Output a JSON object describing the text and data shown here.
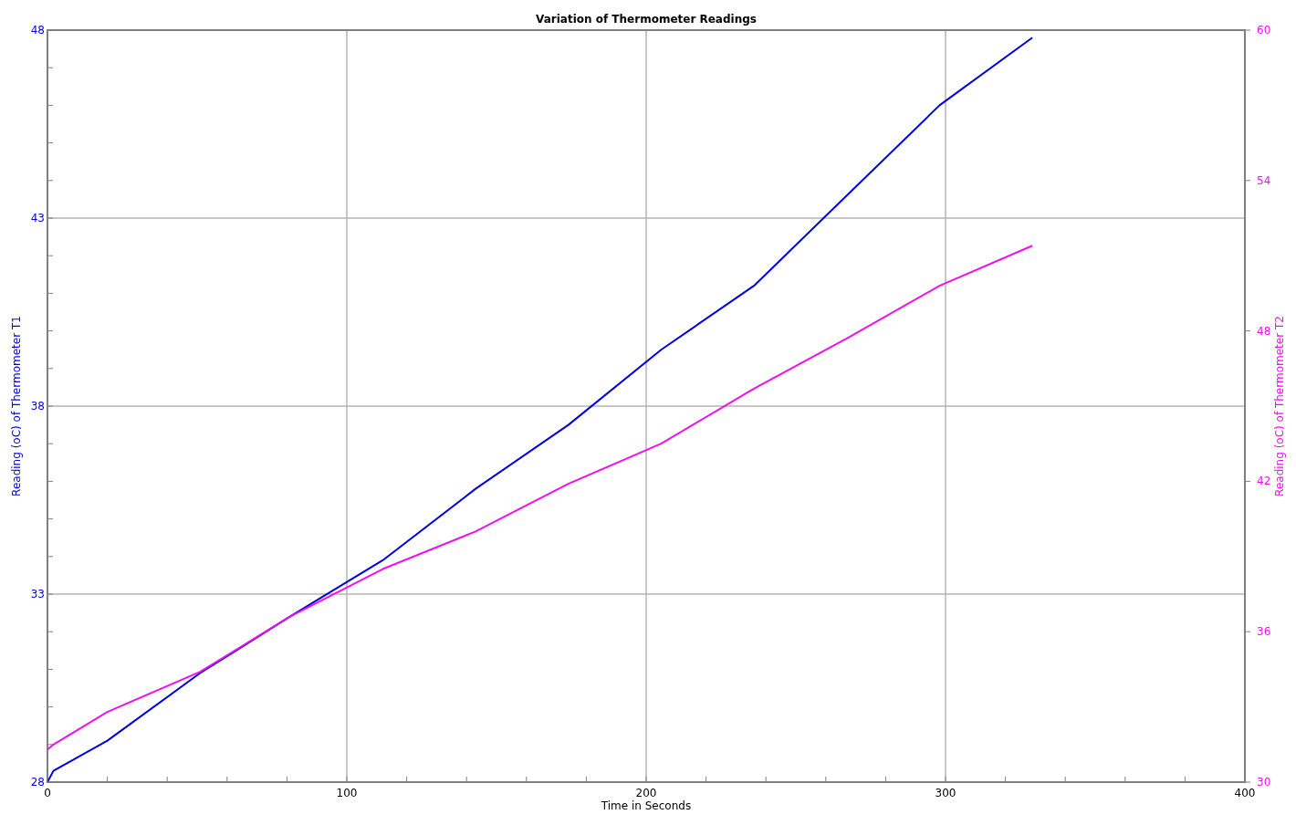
{
  "chart_data": {
    "type": "line",
    "title": "Variation of Thermometer Readings",
    "xlabel": "Time in Seconds",
    "ylabel": "Reading (oC) of Thermometer T1",
    "y2label": "Reading (oC) of Thermometer T2",
    "x": [
      0,
      2,
      20,
      51,
      81,
      112,
      143,
      174,
      205,
      236,
      267,
      298,
      329
    ],
    "series": [
      {
        "color": "#0000dd",
        "values": [
          28.0,
          28.3,
          29.1,
          30.9,
          32.4,
          33.9,
          35.8,
          37.5,
          39.5,
          41.2,
          43.6,
          46.0,
          47.8
        ]
      },
      {
        "color": "#ee11ee",
        "axis": "y2",
        "values": [
          31.3,
          31.5,
          32.8,
          34.4,
          36.6,
          38.5,
          40.0,
          41.9,
          43.5,
          45.7,
          47.7,
          49.8,
          51.4
        ]
      }
    ],
    "xlim": [
      0,
      400
    ],
    "xticks": [
      0,
      {
        "value": 20,
        "label": null
      },
      {
        "value": 40,
        "label": null
      },
      {
        "value": 60,
        "label": null
      },
      {
        "value": 80,
        "label": null
      },
      100,
      {
        "value": 120,
        "label": null
      },
      {
        "value": 140,
        "label": null
      },
      {
        "value": 160,
        "label": null
      },
      {
        "value": 180,
        "label": null
      },
      200,
      {
        "value": 220,
        "label": null
      },
      {
        "value": 240,
        "label": null
      },
      {
        "value": 260,
        "label": null
      },
      {
        "value": 280,
        "label": null
      },
      300,
      {
        "value": 320,
        "label": null
      },
      {
        "value": 340,
        "label": null
      },
      {
        "value": 360,
        "label": null
      },
      {
        "value": 380,
        "label": null
      },
      400
    ],
    "ylim": [
      28,
      48
    ],
    "yticks": [
      28,
      {
        "value": 29,
        "label": null
      },
      {
        "value": 30,
        "label": null
      },
      {
        "value": 31,
        "label": null
      },
      {
        "value": 32,
        "label": null
      },
      33,
      {
        "value": 34,
        "label": null
      },
      {
        "value": 35,
        "label": null
      },
      {
        "value": 36,
        "label": null
      },
      {
        "value": 37,
        "label": null
      },
      38,
      {
        "value": 39,
        "label": null
      },
      {
        "value": 40,
        "label": null
      },
      {
        "value": 41,
        "label": null
      },
      {
        "value": 42,
        "label": null
      },
      43,
      {
        "value": 44,
        "label": null
      },
      {
        "value": 45,
        "label": null
      },
      {
        "value": 46,
        "label": null
      },
      {
        "value": 47,
        "label": null
      },
      48
    ],
    "y2lim": [
      30,
      60
    ],
    "y2ticks": [
      30,
      36,
      42,
      48,
      54,
      60
    ],
    "grid": true,
    "marker": "none",
    "line_style": "solid"
  }
}
